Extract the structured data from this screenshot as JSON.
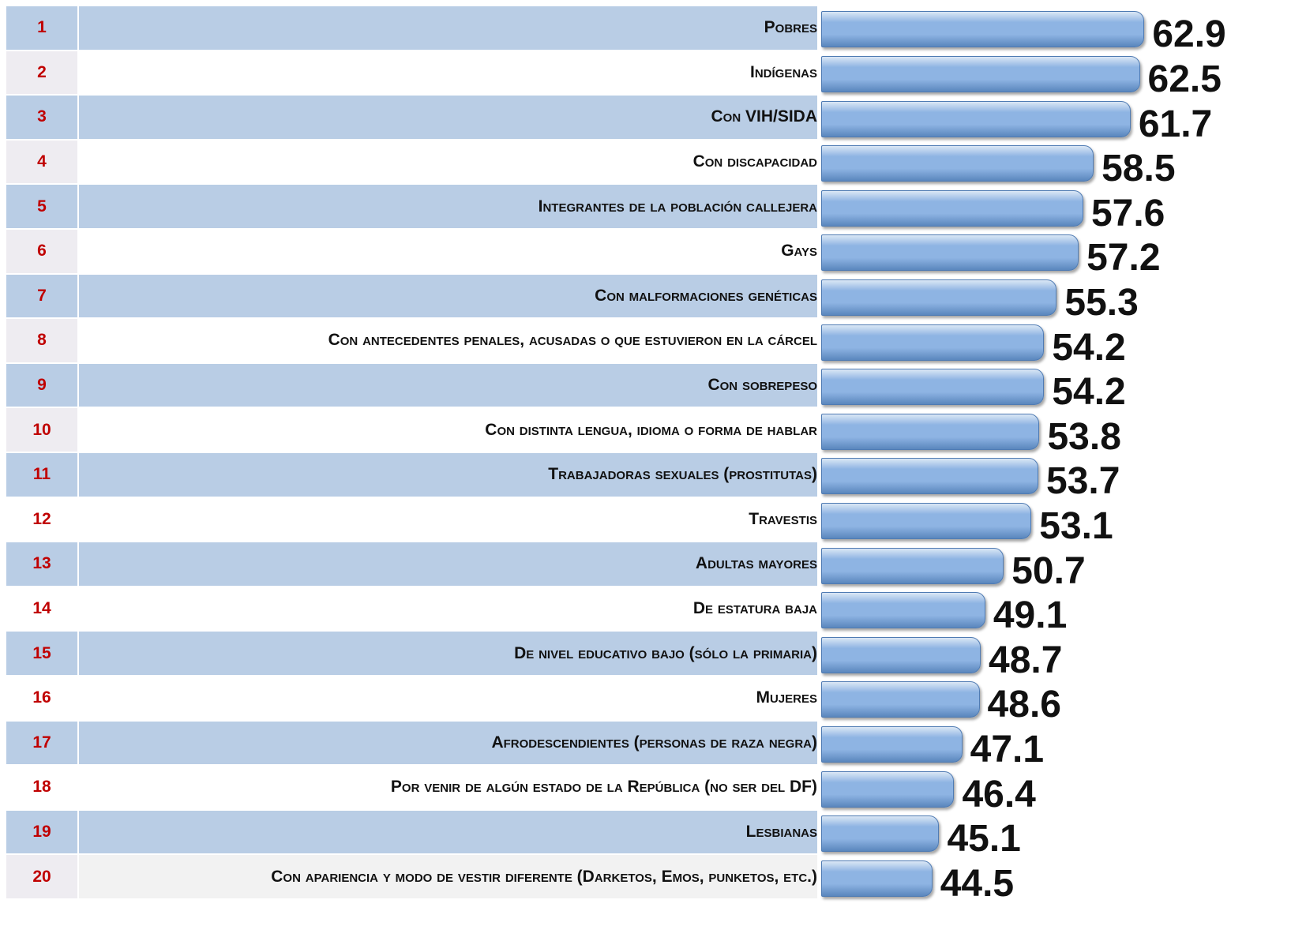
{
  "chart_data": {
    "type": "bar",
    "orientation": "horizontal",
    "ranks": [
      1,
      2,
      3,
      4,
      5,
      6,
      7,
      8,
      9,
      10,
      11,
      12,
      13,
      14,
      15,
      16,
      17,
      18,
      19,
      20
    ],
    "categories": [
      "Pobres",
      "Indígenas",
      "Con VIH/SIDA",
      "Con discapacidad",
      "Integrantes de la población callejera",
      "Gays",
      "Con malformaciones genéticas",
      "Con antecedentes penales, acusadas o que estuvieron en la cárcel",
      "Con sobrepeso",
      "Con distinta lengua,  idioma o forma de hablar",
      "Trabajadoras sexuales (prostitutas)",
      "Travestis",
      "Adultas mayores",
      "De estatura baja",
      "De nivel educativo bajo (sólo la primaria)",
      "Mujeres",
      "Afrodescendientes (personas de raza negra)",
      "Por venir de algún estado de la República (no ser del DF)",
      "Lesbianas",
      "Con apariencia y modo de vestir diferente (Darketos, Emos, punketos, etc.)"
    ],
    "values": [
      62.9,
      62.5,
      61.7,
      58.5,
      57.6,
      57.2,
      55.3,
      54.2,
      54.2,
      53.8,
      53.7,
      53.1,
      50.7,
      49.1,
      48.7,
      48.6,
      47.1,
      46.4,
      45.1,
      44.5
    ],
    "color": "#8eb4e3",
    "xlim": [
      35,
      65
    ]
  }
}
